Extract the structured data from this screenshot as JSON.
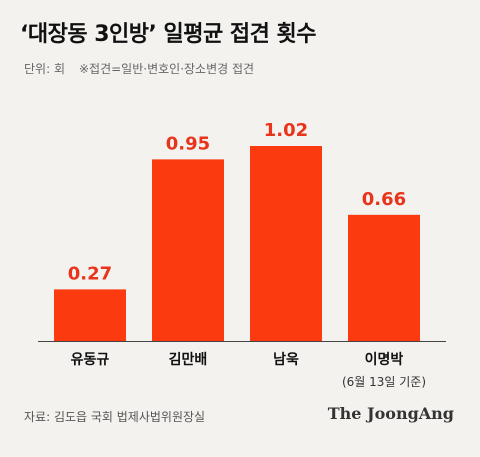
{
  "header": {
    "title": "‘대장동 3인방’ 일평균 접견 횟수",
    "unit": "단위: 회",
    "note": "※접견=일반·변호인·장소변경 접견"
  },
  "chart_data": {
    "type": "bar",
    "categories": [
      "유동규",
      "김만배",
      "남욱",
      "이명박"
    ],
    "category_notes": [
      "",
      "",
      "",
      "(6월 13일 기준)"
    ],
    "values": [
      0.27,
      0.95,
      1.02,
      0.66
    ],
    "value_labels": [
      "0.27",
      "0.95",
      "1.02",
      "0.66"
    ],
    "title": "‘대장동 3인방’ 일평균 접견 횟수",
    "xlabel": "",
    "ylabel": "",
    "ylim": [
      0,
      1.02
    ],
    "grid": false,
    "legend": "none",
    "colors": {
      "bar": "#fb3a10",
      "label": "#e8341a",
      "axis": "#444444"
    }
  },
  "footer": {
    "source": "자료: 김도읍 국회 법제사법위원장실",
    "brand": "The JoongAng"
  }
}
